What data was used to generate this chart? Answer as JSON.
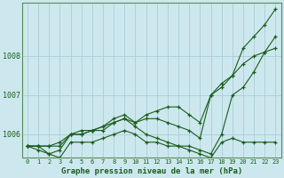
{
  "xlabel": "Graphe pression niveau de la mer (hPa)",
  "bg_color": "#cce8ee",
  "grid_color": "#aacdd6",
  "line_color": "#1a5c1a",
  "x": [
    0,
    1,
    2,
    3,
    4,
    5,
    6,
    7,
    8,
    9,
    10,
    11,
    12,
    13,
    14,
    15,
    16,
    17,
    18,
    19,
    20,
    21,
    22,
    23
  ],
  "series": [
    [
      1005.7,
      1005.7,
      1005.7,
      1005.7,
      1006.0,
      1006.0,
      1006.1,
      1006.2,
      1006.4,
      1006.5,
      1006.3,
      1006.5,
      1006.6,
      1006.7,
      1006.7,
      1006.5,
      1006.3,
      1007.0,
      1007.3,
      1007.5,
      1008.2,
      1008.5,
      1008.8,
      1009.2
    ],
    [
      1005.7,
      1005.7,
      1005.7,
      1005.8,
      1006.0,
      1006.1,
      1006.1,
      1006.2,
      1006.3,
      1006.4,
      1006.3,
      1006.4,
      1006.4,
      1006.3,
      1006.2,
      1006.1,
      1005.9,
      1007.0,
      1007.2,
      1007.5,
      1007.8,
      1008.0,
      1008.1,
      1008.2
    ],
    [
      1005.7,
      1005.6,
      1005.5,
      1005.6,
      1006.0,
      1006.0,
      1006.1,
      1006.1,
      1006.3,
      1006.4,
      1006.2,
      1006.0,
      1005.9,
      1005.8,
      1005.7,
      1005.7,
      1005.6,
      1005.5,
      1006.0,
      1007.0,
      1007.2,
      1007.6,
      1008.1,
      1008.5
    ],
    [
      1005.7,
      1005.7,
      1005.5,
      1005.4,
      1005.8,
      1005.8,
      1005.8,
      1005.9,
      1006.0,
      1006.1,
      1006.0,
      1005.8,
      1005.8,
      1005.7,
      1005.7,
      1005.6,
      1005.5,
      1005.4,
      1005.8,
      1005.9,
      1005.8,
      1005.8,
      1005.8,
      1005.8
    ]
  ],
  "yticks": [
    1006,
    1007,
    1008
  ],
  "ylim": [
    1005.4,
    1009.35
  ],
  "xlim": [
    -0.5,
    23.5
  ]
}
